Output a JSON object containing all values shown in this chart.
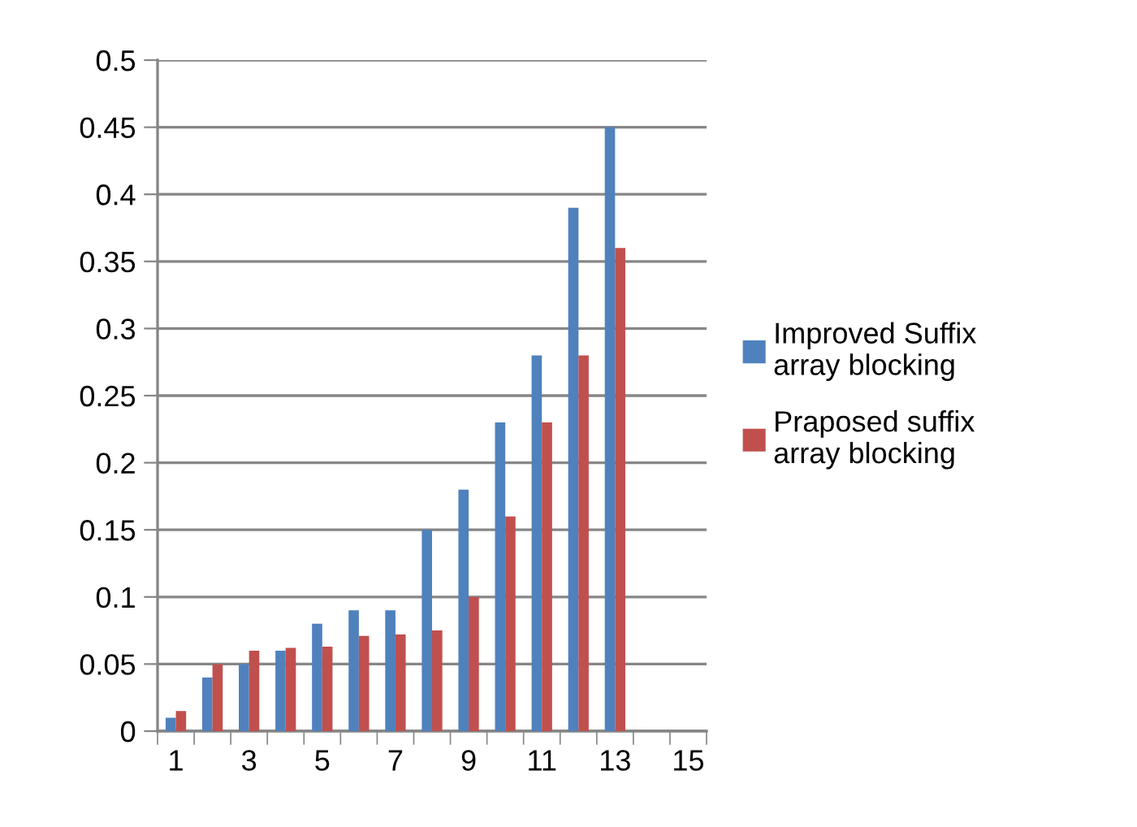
{
  "chart_data": {
    "type": "bar",
    "categories": [
      "1",
      null,
      "3",
      null,
      "5",
      null,
      "7",
      null,
      "9",
      null,
      "11",
      null,
      "13",
      null,
      "15"
    ],
    "series": [
      {
        "name": "Improved Suffix array blocking",
        "color": "#4f81bd",
        "values": [
          0.01,
          0.04,
          0.05,
          0.06,
          0.08,
          0.09,
          0.09,
          0.15,
          0.18,
          0.23,
          0.28,
          0.39,
          0.45,
          null,
          null
        ]
      },
      {
        "name": "Praposed suffix array blocking",
        "color": "#c0504d",
        "values": [
          0.015,
          0.05,
          0.06,
          0.062,
          0.063,
          0.071,
          0.072,
          0.075,
          0.1,
          0.16,
          0.23,
          0.28,
          0.36,
          null,
          null
        ]
      }
    ],
    "ylim": [
      0,
      0.5
    ],
    "yticks": [
      0,
      0.05,
      0.1,
      0.15,
      0.2,
      0.25,
      0.3,
      0.35,
      0.4,
      0.45,
      0.5
    ],
    "grid": "y",
    "legend": "right"
  }
}
